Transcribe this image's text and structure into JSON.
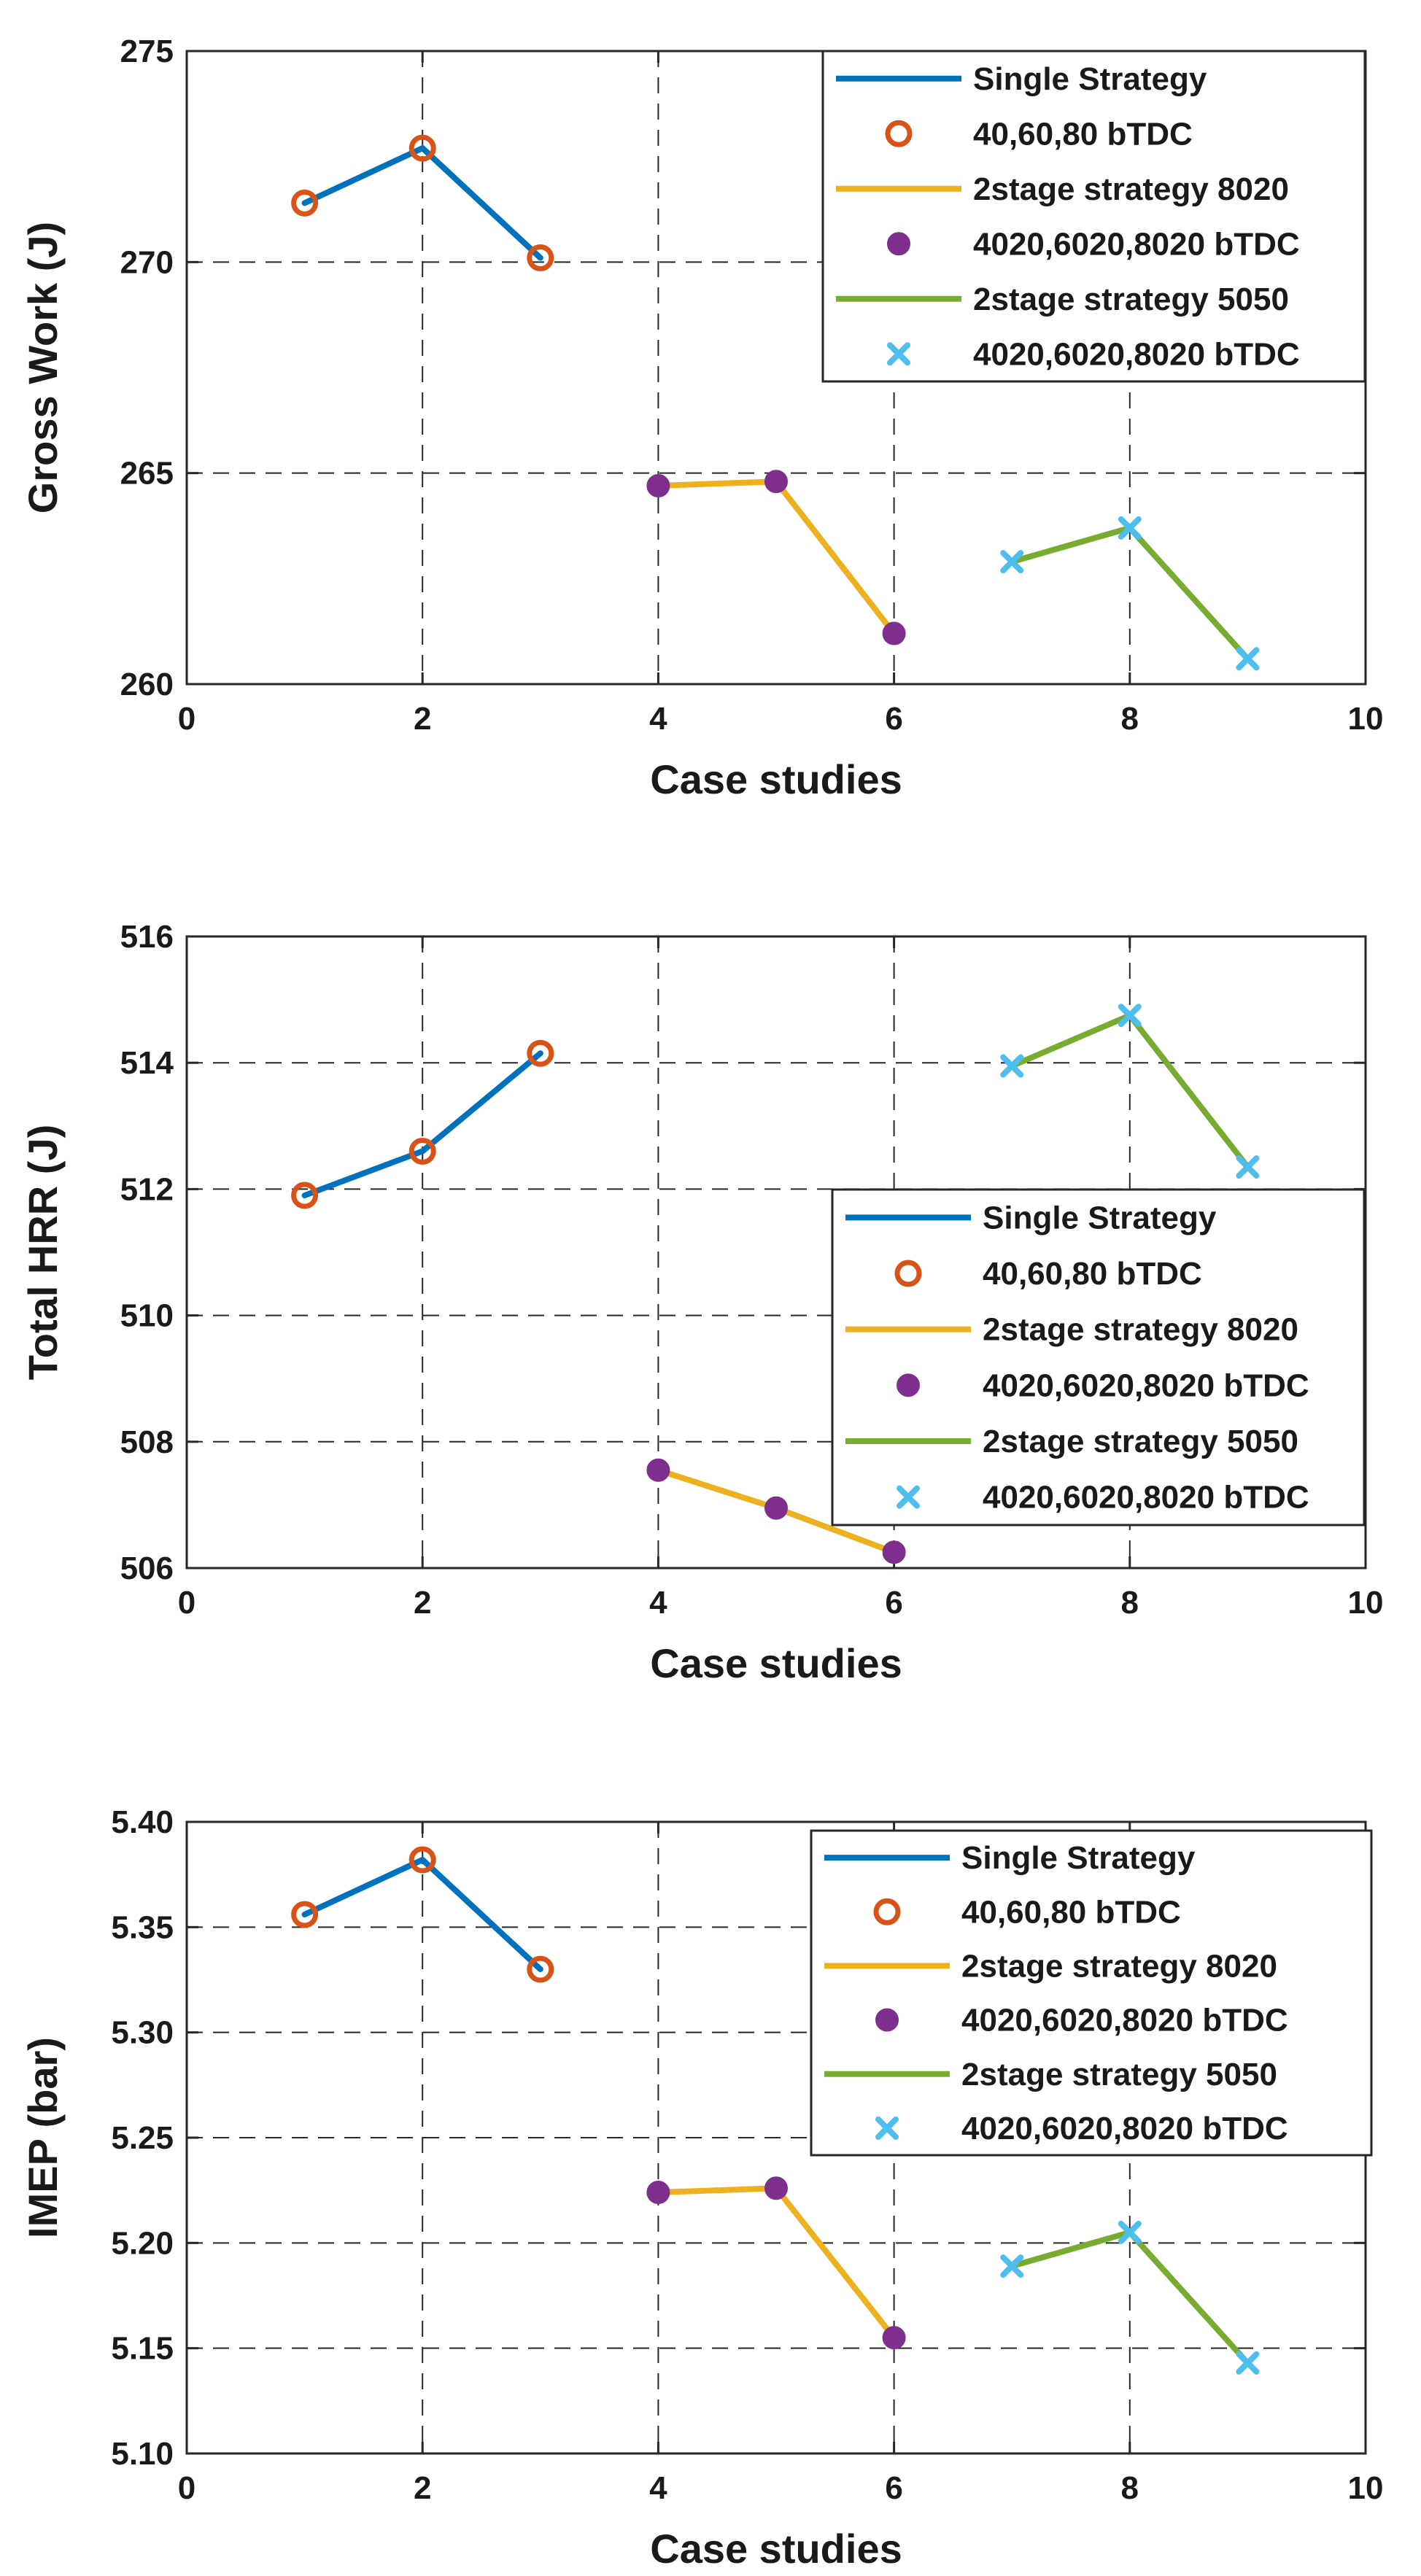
{
  "chart_data": [
    {
      "type": "line",
      "title": "",
      "xlabel": "Case studies",
      "ylabel": "Gross Work (J)",
      "xlim": [
        0,
        10
      ],
      "ylim": [
        260,
        275
      ],
      "xticks": [
        0,
        2,
        4,
        6,
        8,
        10
      ],
      "yticks": [
        260,
        265,
        270,
        275
      ],
      "grid": true,
      "legend_position": "top-right",
      "series": [
        {
          "name": "Single Strategy",
          "marker_name": "40,60,80 bTDC",
          "color": "#0072BD",
          "marker_color": "#D95319",
          "marker": "circle",
          "x": [
            1,
            2,
            3
          ],
          "values": [
            271.4,
            272.7,
            270.1
          ]
        },
        {
          "name": "2stage strategy 8020",
          "marker_name": "4020,6020,8020 bTDC",
          "color": "#EDB120",
          "marker_color": "#7E2F8E",
          "marker": "dot",
          "x": [
            4,
            5,
            6
          ],
          "values": [
            264.7,
            264.8,
            261.2
          ]
        },
        {
          "name": "2stage strategy 5050",
          "marker_name": "4020,6020,8020 bTDC",
          "color": "#77AC30",
          "marker_color": "#4DBEEE",
          "marker": "x",
          "x": [
            7,
            8,
            9
          ],
          "values": [
            262.9,
            263.7,
            260.6
          ]
        }
      ]
    },
    {
      "type": "line",
      "title": "",
      "xlabel": "Case studies",
      "ylabel": "Total HRR (J)",
      "xlim": [
        0,
        10
      ],
      "ylim": [
        506,
        516
      ],
      "xticks": [
        0,
        2,
        4,
        6,
        8,
        10
      ],
      "yticks": [
        506,
        508,
        510,
        512,
        514,
        516
      ],
      "grid": true,
      "legend_position": "middle-right",
      "series": [
        {
          "name": "Single Strategy",
          "marker_name": "40,60,80 bTDC",
          "color": "#0072BD",
          "marker_color": "#D95319",
          "marker": "circle",
          "x": [
            1,
            2,
            3
          ],
          "values": [
            511.9,
            512.6,
            514.15
          ]
        },
        {
          "name": "2stage strategy 8020",
          "marker_name": "4020,6020,8020 bTDC",
          "color": "#EDB120",
          "marker_color": "#7E2F8E",
          "marker": "dot",
          "x": [
            4,
            5,
            6
          ],
          "values": [
            507.55,
            506.95,
            506.25
          ]
        },
        {
          "name": "2stage strategy 5050",
          "marker_name": "4020,6020,8020 bTDC",
          "color": "#77AC30",
          "marker_color": "#4DBEEE",
          "marker": "x",
          "x": [
            7,
            8,
            9
          ],
          "values": [
            513.95,
            514.75,
            512.35
          ]
        }
      ]
    },
    {
      "type": "line",
      "title": "",
      "xlabel": "Case studies",
      "ylabel": "IMEP (bar)",
      "xlim": [
        0,
        10
      ],
      "ylim": [
        5.1,
        5.4
      ],
      "xticks": [
        0,
        2,
        4,
        6,
        8,
        10
      ],
      "yticks": [
        5.1,
        5.15,
        5.2,
        5.25,
        5.3,
        5.35,
        5.4
      ],
      "grid": true,
      "legend_position": "top-right",
      "series": [
        {
          "name": "Single Strategy",
          "marker_name": "40,60,80 bTDC",
          "color": "#0072BD",
          "marker_color": "#D95319",
          "marker": "circle",
          "x": [
            1,
            2,
            3
          ],
          "values": [
            5.356,
            5.382,
            5.33
          ]
        },
        {
          "name": "2stage strategy 8020",
          "marker_name": "4020,6020,8020 bTDC",
          "color": "#EDB120",
          "marker_color": "#7E2F8E",
          "marker": "dot",
          "x": [
            4,
            5,
            6
          ],
          "values": [
            5.224,
            5.226,
            5.155
          ]
        },
        {
          "name": "2stage strategy 5050",
          "marker_name": "4020,6020,8020 bTDC",
          "color": "#77AC30",
          "marker_color": "#4DBEEE",
          "marker": "x",
          "x": [
            7,
            8,
            9
          ],
          "values": [
            5.189,
            5.205,
            5.143
          ]
        }
      ]
    }
  ]
}
